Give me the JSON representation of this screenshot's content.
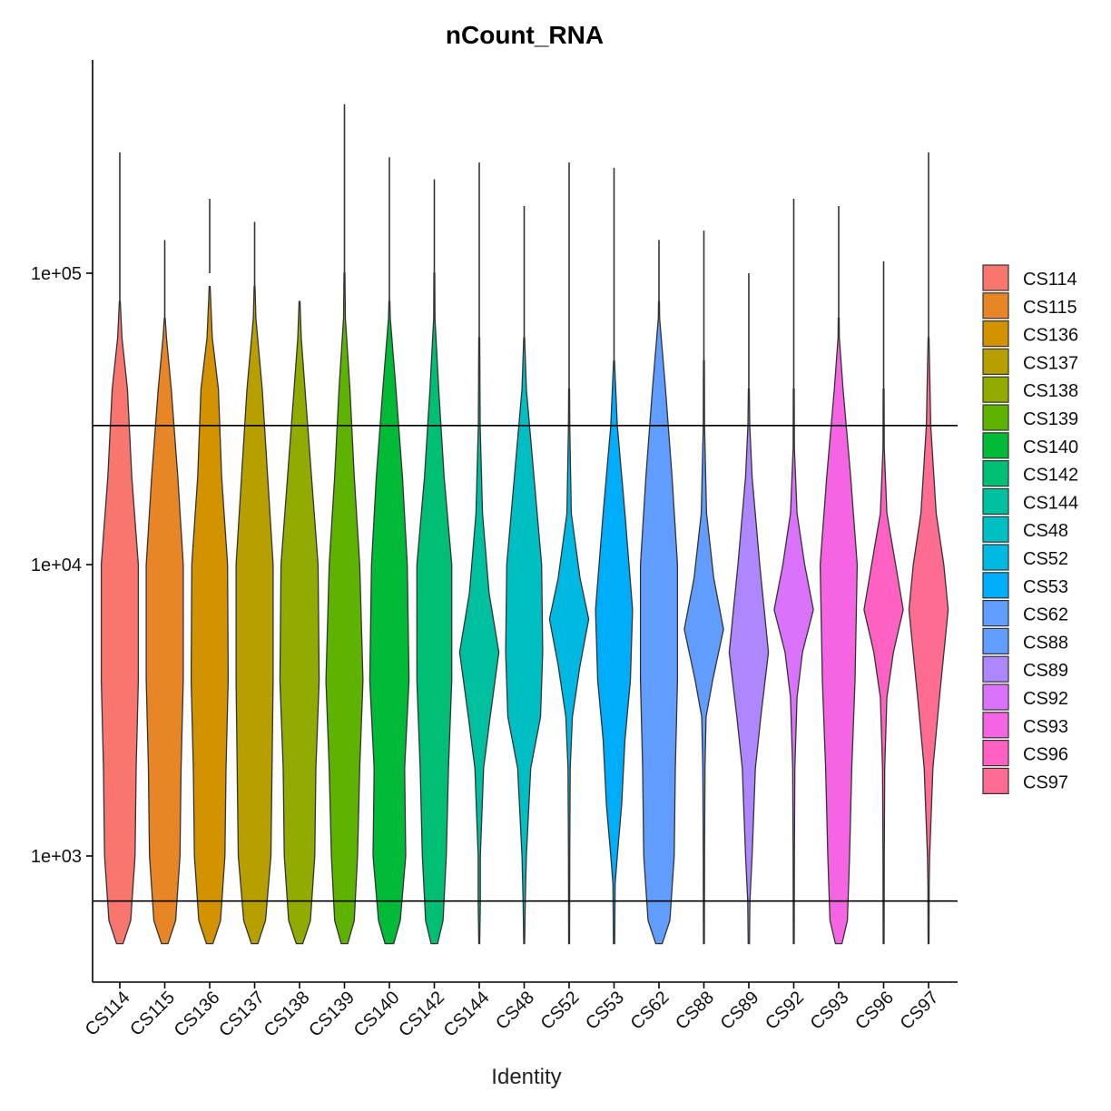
{
  "chart_data": {
    "type": "violin",
    "title": "nCount_RNA",
    "xlabel": "Identity",
    "ylabel": "",
    "y_scale": "log10",
    "ylim": [
      300,
      600000
    ],
    "y_ticks": [
      {
        "value": 1000,
        "label": "1e+03"
      },
      {
        "value": 10000,
        "label": "1e+04"
      },
      {
        "value": 100000,
        "label": "1e+05"
      }
    ],
    "threshold_lines": [
      30000,
      700
    ],
    "legend_position": "right",
    "categories": [
      "CS114",
      "CS115",
      "CS136",
      "CS137",
      "CS138",
      "CS139",
      "CS140",
      "CS142",
      "CS144",
      "CS48",
      "CS52",
      "CS53",
      "CS62",
      "CS88",
      "CS89",
      "CS92",
      "CS93",
      "CS96",
      "CS97"
    ],
    "colors": [
      "#F8766D",
      "#E88526",
      "#D39200",
      "#B79F00",
      "#93AA00",
      "#5EB300",
      "#00BA38",
      "#00BF74",
      "#00C19F",
      "#00BFC4",
      "#00B9E3",
      "#00ADFA",
      "#619CFF",
      "#619CFF",
      "#AE87FF",
      "#DB72FB",
      "#F564E3",
      "#FF61C3",
      "#FF6C91"
    ],
    "series": [
      {
        "name": "CS114",
        "min": 500,
        "max": 260000,
        "spike": 80000,
        "profile": [
          [
            500,
            0.15
          ],
          [
            600,
            0.5
          ],
          [
            1000,
            0.7
          ],
          [
            2000,
            0.75
          ],
          [
            4000,
            0.85
          ],
          [
            10000,
            0.85
          ],
          [
            20000,
            0.55
          ],
          [
            40000,
            0.35
          ],
          [
            60000,
            0.1
          ],
          [
            80000,
            0.02
          ]
        ]
      },
      {
        "name": "CS115",
        "min": 500,
        "max": 130000,
        "spike": 70000,
        "profile": [
          [
            500,
            0.15
          ],
          [
            600,
            0.5
          ],
          [
            1000,
            0.7
          ],
          [
            2000,
            0.75
          ],
          [
            4000,
            0.85
          ],
          [
            10000,
            0.85
          ],
          [
            20000,
            0.6
          ],
          [
            40000,
            0.3
          ],
          [
            60000,
            0.08
          ],
          [
            70000,
            0.02
          ]
        ]
      },
      {
        "name": "CS136",
        "min": 500,
        "max": 180000,
        "spike": 100000,
        "profile": [
          [
            500,
            0.15
          ],
          [
            600,
            0.5
          ],
          [
            1000,
            0.7
          ],
          [
            2000,
            0.75
          ],
          [
            4000,
            0.85
          ],
          [
            10000,
            0.82
          ],
          [
            20000,
            0.55
          ],
          [
            40000,
            0.4
          ],
          [
            60000,
            0.12
          ],
          [
            90000,
            0.02
          ]
        ]
      },
      {
        "name": "CS137",
        "min": 500,
        "max": 150000,
        "spike": 90000,
        "profile": [
          [
            500,
            0.15
          ],
          [
            600,
            0.5
          ],
          [
            1000,
            0.75
          ],
          [
            2000,
            0.8
          ],
          [
            4000,
            0.85
          ],
          [
            10000,
            0.85
          ],
          [
            20000,
            0.6
          ],
          [
            40000,
            0.35
          ],
          [
            70000,
            0.06
          ],
          [
            90000,
            0.02
          ]
        ]
      },
      {
        "name": "CS138",
        "min": 500,
        "max": 82000,
        "spike": 82000,
        "profile": [
          [
            500,
            0.15
          ],
          [
            600,
            0.5
          ],
          [
            1000,
            0.7
          ],
          [
            2000,
            0.75
          ],
          [
            4000,
            0.9
          ],
          [
            10000,
            0.85
          ],
          [
            20000,
            0.55
          ],
          [
            40000,
            0.25
          ],
          [
            60000,
            0.08
          ],
          [
            80000,
            0.02
          ]
        ]
      },
      {
        "name": "CS139",
        "min": 500,
        "max": 380000,
        "spike": 100000,
        "profile": [
          [
            500,
            0.15
          ],
          [
            600,
            0.45
          ],
          [
            1000,
            0.6
          ],
          [
            2000,
            0.7
          ],
          [
            4000,
            0.85
          ],
          [
            10000,
            0.7
          ],
          [
            20000,
            0.45
          ],
          [
            40000,
            0.25
          ],
          [
            70000,
            0.04
          ],
          [
            100000,
            0.02
          ]
        ]
      },
      {
        "name": "CS140",
        "min": 500,
        "max": 250000,
        "spike": 80000,
        "profile": [
          [
            500,
            0.2
          ],
          [
            600,
            0.5
          ],
          [
            1000,
            0.75
          ],
          [
            2000,
            0.7
          ],
          [
            4000,
            0.9
          ],
          [
            10000,
            0.82
          ],
          [
            20000,
            0.6
          ],
          [
            40000,
            0.3
          ],
          [
            70000,
            0.04
          ],
          [
            80000,
            0.02
          ]
        ]
      },
      {
        "name": "CS142",
        "min": 500,
        "max": 210000,
        "spike": 100000,
        "profile": [
          [
            500,
            0.15
          ],
          [
            600,
            0.4
          ],
          [
            1000,
            0.55
          ],
          [
            2000,
            0.65
          ],
          [
            4000,
            0.8
          ],
          [
            10000,
            0.8
          ],
          [
            20000,
            0.45
          ],
          [
            40000,
            0.2
          ],
          [
            70000,
            0.03
          ],
          [
            100000,
            0.02
          ]
        ]
      },
      {
        "name": "CS144",
        "min": 500,
        "max": 240000,
        "spike": 60000,
        "profile": [
          [
            500,
            0.02
          ],
          [
            700,
            0.05
          ],
          [
            1000,
            0.05
          ],
          [
            2000,
            0.2
          ],
          [
            3000,
            0.5
          ],
          [
            5000,
            0.9
          ],
          [
            8000,
            0.45
          ],
          [
            15000,
            0.15
          ],
          [
            30000,
            0.04
          ],
          [
            60000,
            0.02
          ]
        ]
      },
      {
        "name": "CS48",
        "min": 500,
        "max": 170000,
        "spike": 60000,
        "profile": [
          [
            500,
            0.02
          ],
          [
            700,
            0.05
          ],
          [
            1000,
            0.1
          ],
          [
            2000,
            0.3
          ],
          [
            3000,
            0.75
          ],
          [
            5000,
            0.85
          ],
          [
            10000,
            0.8
          ],
          [
            20000,
            0.45
          ],
          [
            40000,
            0.1
          ],
          [
            60000,
            0.02
          ]
        ]
      },
      {
        "name": "CS52",
        "min": 500,
        "max": 240000,
        "spike": 40000,
        "profile": [
          [
            500,
            0.02
          ],
          [
            1000,
            0.03
          ],
          [
            2000,
            0.05
          ],
          [
            3000,
            0.15
          ],
          [
            4500,
            0.5
          ],
          [
            6500,
            0.9
          ],
          [
            9000,
            0.5
          ],
          [
            15000,
            0.1
          ],
          [
            30000,
            0.03
          ],
          [
            40000,
            0.02
          ]
        ]
      },
      {
        "name": "CS53",
        "min": 500,
        "max": 230000,
        "spike": 50000,
        "profile": [
          [
            500,
            0.03
          ],
          [
            800,
            0.05
          ],
          [
            1000,
            0.15
          ],
          [
            1500,
            0.35
          ],
          [
            2500,
            0.5
          ],
          [
            4000,
            0.75
          ],
          [
            7000,
            0.85
          ],
          [
            15000,
            0.5
          ],
          [
            30000,
            0.15
          ],
          [
            50000,
            0.02
          ]
        ]
      },
      {
        "name": "CS62",
        "min": 500,
        "max": 130000,
        "spike": 80000,
        "profile": [
          [
            500,
            0.15
          ],
          [
            600,
            0.5
          ],
          [
            1000,
            0.7
          ],
          [
            2000,
            0.75
          ],
          [
            4000,
            0.85
          ],
          [
            10000,
            0.85
          ],
          [
            20000,
            0.6
          ],
          [
            40000,
            0.3
          ],
          [
            70000,
            0.03
          ],
          [
            80000,
            0.02
          ]
        ]
      },
      {
        "name": "CS88",
        "min": 500,
        "max": 140000,
        "spike": 50000,
        "profile": [
          [
            500,
            0.02
          ],
          [
            1000,
            0.03
          ],
          [
            2000,
            0.05
          ],
          [
            3000,
            0.1
          ],
          [
            4000,
            0.4
          ],
          [
            6000,
            0.9
          ],
          [
            9000,
            0.45
          ],
          [
            15000,
            0.12
          ],
          [
            30000,
            0.03
          ],
          [
            50000,
            0.02
          ]
        ]
      },
      {
        "name": "CS89",
        "min": 500,
        "max": 100000,
        "spike": 40000,
        "profile": [
          [
            500,
            0.03
          ],
          [
            700,
            0.05
          ],
          [
            1000,
            0.15
          ],
          [
            2000,
            0.3
          ],
          [
            3000,
            0.55
          ],
          [
            5000,
            0.9
          ],
          [
            10000,
            0.5
          ],
          [
            20000,
            0.15
          ],
          [
            30000,
            0.04
          ],
          [
            40000,
            0.02
          ]
        ]
      },
      {
        "name": "CS92",
        "min": 500,
        "max": 180000,
        "spike": 40000,
        "profile": [
          [
            500,
            0.02
          ],
          [
            1000,
            0.03
          ],
          [
            2000,
            0.05
          ],
          [
            3500,
            0.15
          ],
          [
            5000,
            0.4
          ],
          [
            7000,
            0.9
          ],
          [
            10000,
            0.5
          ],
          [
            15000,
            0.15
          ],
          [
            25000,
            0.03
          ],
          [
            40000,
            0.02
          ]
        ]
      },
      {
        "name": "CS93",
        "min": 500,
        "max": 170000,
        "spike": 70000,
        "profile": [
          [
            500,
            0.15
          ],
          [
            600,
            0.4
          ],
          [
            1000,
            0.5
          ],
          [
            2000,
            0.6
          ],
          [
            4000,
            0.75
          ],
          [
            10000,
            0.85
          ],
          [
            20000,
            0.55
          ],
          [
            40000,
            0.2
          ],
          [
            60000,
            0.03
          ],
          [
            70000,
            0.02
          ]
        ]
      },
      {
        "name": "CS96",
        "min": 500,
        "max": 110000,
        "spike": 40000,
        "profile": [
          [
            500,
            0.02
          ],
          [
            1000,
            0.03
          ],
          [
            2000,
            0.05
          ],
          [
            3500,
            0.15
          ],
          [
            5000,
            0.45
          ],
          [
            7000,
            0.9
          ],
          [
            10000,
            0.55
          ],
          [
            15000,
            0.15
          ],
          [
            25000,
            0.03
          ],
          [
            40000,
            0.02
          ]
        ]
      },
      {
        "name": "CS97",
        "min": 500,
        "max": 260000,
        "spike": 60000,
        "profile": [
          [
            500,
            0.02
          ],
          [
            800,
            0.03
          ],
          [
            1000,
            0.05
          ],
          [
            2000,
            0.2
          ],
          [
            3500,
            0.5
          ],
          [
            7000,
            0.9
          ],
          [
            10000,
            0.7
          ],
          [
            15000,
            0.35
          ],
          [
            30000,
            0.1
          ],
          [
            60000,
            0.02
          ]
        ]
      }
    ]
  }
}
